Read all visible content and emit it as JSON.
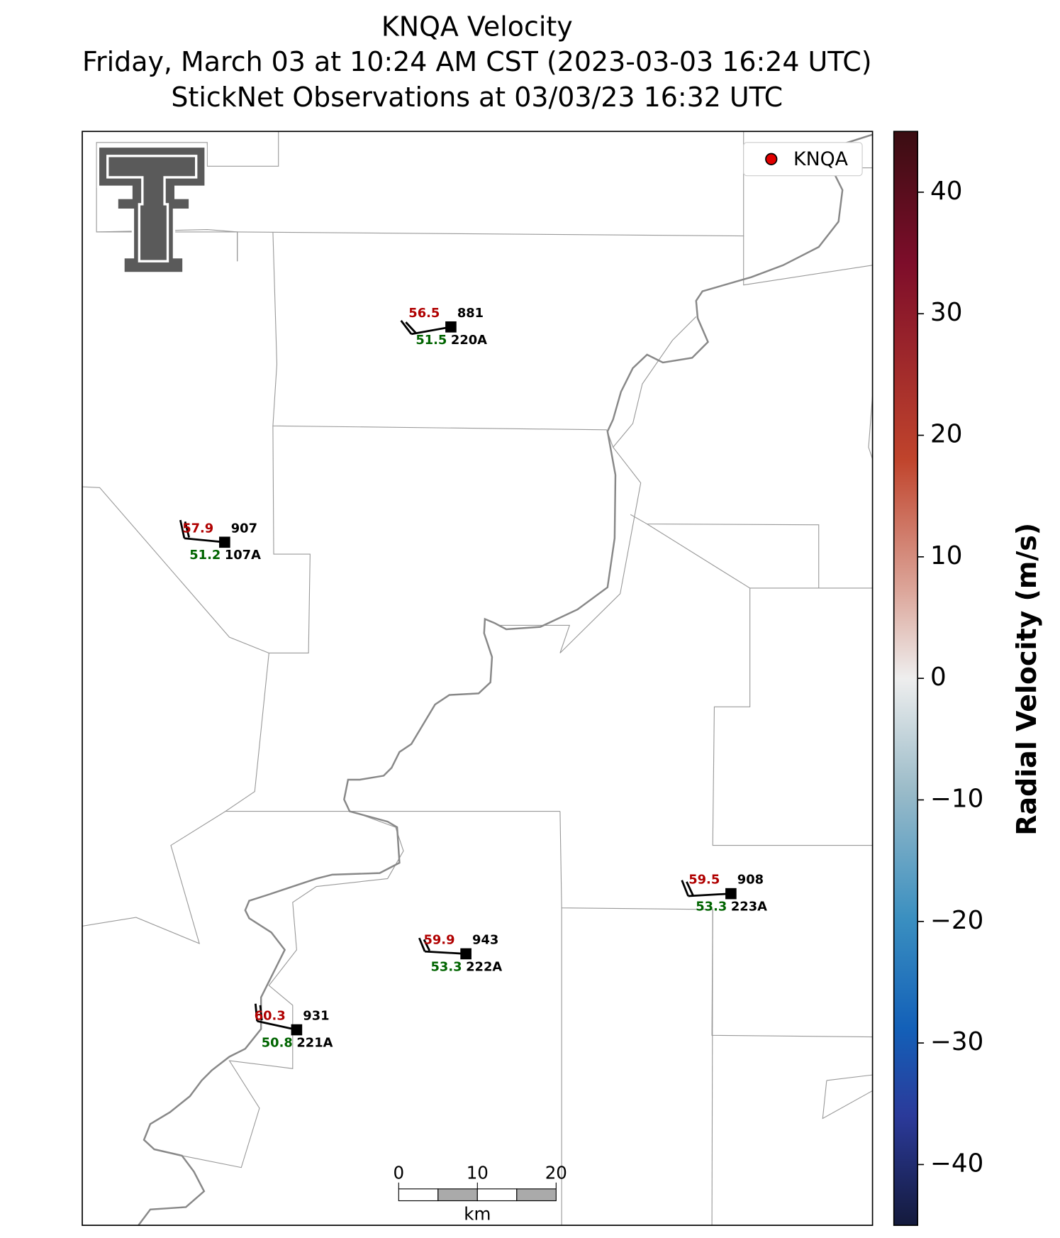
{
  "title": [
    "KNQA Velocity",
    "Friday, March 03 at 10:24 AM CST (2023-03-03 16:24 UTC)",
    "StickNet Observations at 03/03/23 16:32 UTC"
  ],
  "legend": [
    "KNQA"
  ],
  "stations": [
    {
      "temperature": 56.5,
      "pressure": 881,
      "dewpoint": 51.5,
      "id": "220A"
    },
    {
      "temperature": 57.9,
      "pressure": 907,
      "dewpoint": 51.2,
      "id": "107A"
    },
    {
      "temperature": 59.5,
      "pressure": 908,
      "dewpoint": 53.3,
      "id": "223A"
    },
    {
      "temperature": 59.9,
      "pressure": 943,
      "dewpoint": 53.3,
      "id": "222A"
    },
    {
      "temperature": 60.3,
      "pressure": 931,
      "dewpoint": 50.8,
      "id": "221A"
    }
  ],
  "scale_bar": {
    "ticks": [
      0,
      10,
      20
    ],
    "unit": "km"
  },
  "colorbar": {
    "label": "Radial Velocity (m/s)",
    "lim": [
      -45,
      45
    ],
    "ticks": [
      40,
      30,
      20,
      10,
      0,
      {
        "value": -10,
        "label": "−10"
      },
      {
        "value": -20,
        "label": "−20"
      },
      {
        "value": -30,
        "label": "−30"
      },
      {
        "value": -40,
        "label": "−40"
      }
    ]
  }
}
